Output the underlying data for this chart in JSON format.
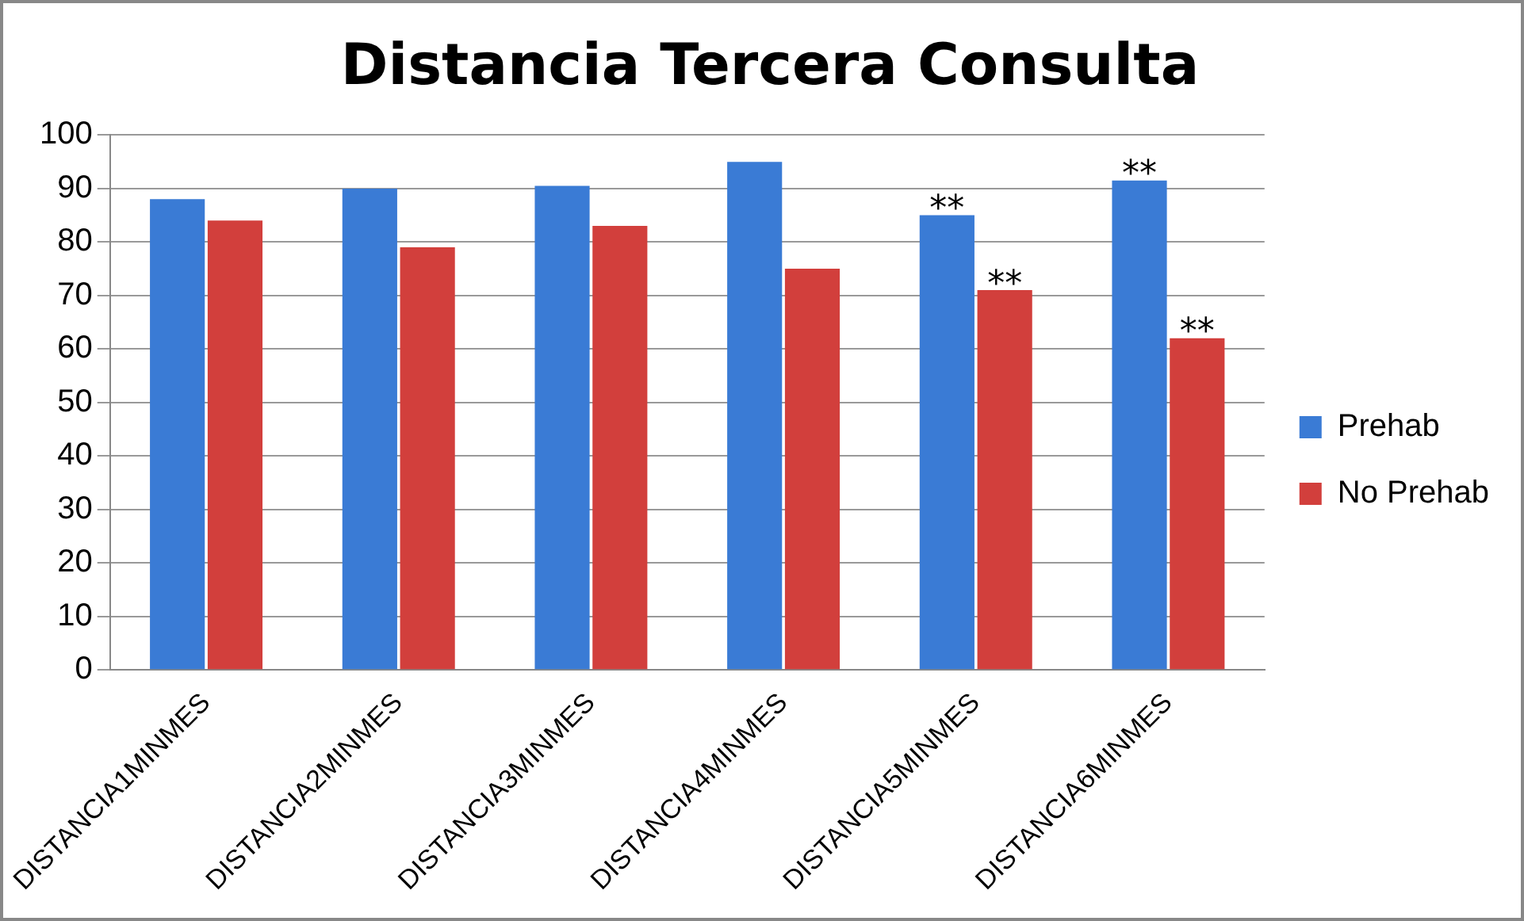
{
  "chart_data": {
    "type": "bar",
    "title": "Distancia Tercera Consulta",
    "categories": [
      "DISTANCIA1MINMES",
      "DISTANCIA2MINMES",
      "DISTANCIA3MINMES",
      "DISTANCIA4MINMES",
      "DISTANCIA5MINMES",
      "DISTANCIA6MINMES"
    ],
    "series": [
      {
        "name": "Prehab",
        "color": "#3a7bd5",
        "values": [
          88,
          90,
          90.5,
          95,
          85,
          91.5
        ]
      },
      {
        "name": "No Prehab",
        "color": "#d23f3c",
        "values": [
          84,
          79,
          83,
          75,
          71,
          62
        ]
      }
    ],
    "ylim": [
      0,
      100
    ],
    "yticks": [
      0,
      10,
      20,
      30,
      40,
      50,
      60,
      70,
      80,
      90,
      100
    ],
    "grid": "y",
    "legend": "right",
    "annotations": [
      {
        "text": "**",
        "x": "DISTANCIA5MINMES",
        "y": 85
      },
      {
        "text": "**",
        "x": "DISTANCIA5MINMES",
        "y": 71
      },
      {
        "text": "**",
        "x": "DISTANCIA6MINMES",
        "y": 91.5
      },
      {
        "text": "**",
        "x": "DISTANCIA6MINMES",
        "y": 62
      }
    ]
  }
}
